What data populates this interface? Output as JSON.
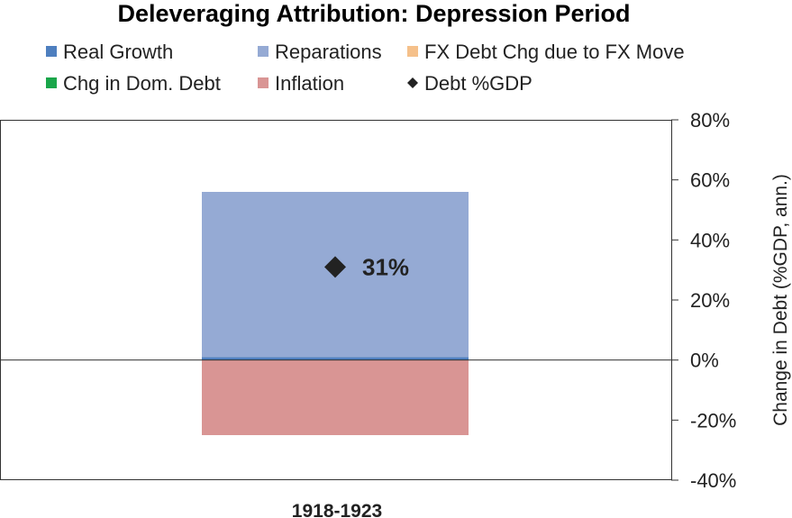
{
  "chart_data": {
    "type": "bar",
    "stacked": true,
    "title": "Deleveraging Attribution: Depression Period",
    "ylabel": "Change in Debt (%GDP, ann.)",
    "ylim": [
      -40,
      80
    ],
    "yticks": [
      80,
      60,
      40,
      20,
      0,
      -20,
      -40
    ],
    "ytick_labels": [
      "80%",
      "60%",
      "40%",
      "20%",
      "0%",
      "-20%",
      "-40%"
    ],
    "y_axis_position": "right",
    "grid": false,
    "legend_position": "top",
    "categories": [
      "1918-1923"
    ],
    "series": [
      {
        "name": "Real Growth",
        "color": "#4e7fbf",
        "values": [
          1
        ]
      },
      {
        "name": "Reparations",
        "color": "#95aad4",
        "values": [
          55
        ]
      },
      {
        "name": "FX Debt Chg due to FX Move",
        "color": "#f5c08a",
        "values": [
          0
        ]
      },
      {
        "name": "Chg in Dom. Debt",
        "color": "#1aa64a",
        "values": [
          0
        ]
      },
      {
        "name": "Inflation",
        "color": "#d99594",
        "values": [
          -25
        ]
      }
    ],
    "markers": [
      {
        "name": "Debt %GDP",
        "marker": "diamond",
        "color": "#222222",
        "values": [
          31
        ],
        "labels": [
          "31%"
        ]
      }
    ],
    "legend": [
      {
        "label": "Real Growth",
        "swatch": "square",
        "color": "#4e7fbf"
      },
      {
        "label": "Reparations",
        "swatch": "square",
        "color": "#95aad4"
      },
      {
        "label": "FX Debt Chg due to FX Move",
        "swatch": "square",
        "color": "#f5c08a"
      },
      {
        "label": "Chg in Dom. Debt",
        "swatch": "square",
        "color": "#1aa64a"
      },
      {
        "label": "Inflation",
        "swatch": "square",
        "color": "#d99594"
      },
      {
        "label": "Debt %GDP",
        "swatch": "diamond",
        "color": "#222222"
      }
    ]
  }
}
